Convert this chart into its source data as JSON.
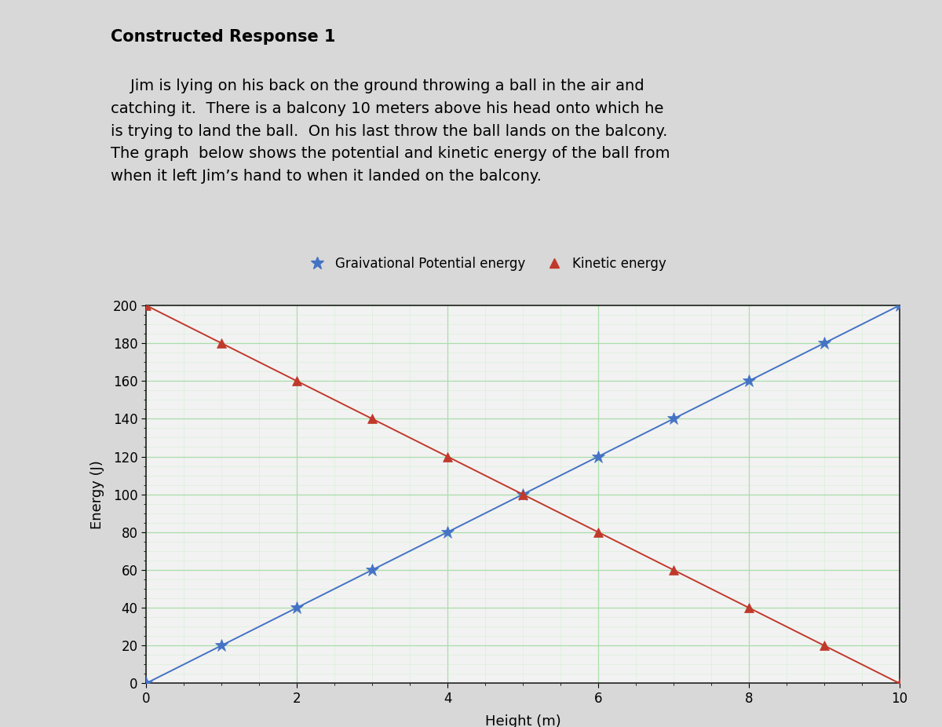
{
  "title": "Constructed Response 1",
  "body_line1": "    Jim is lying on his back on the ground throwing a ball in the air and",
  "body_line2": "catching it.  There is a balcony 10 meters above his head onto which he",
  "body_line3": "is trying to land the ball.  On his last throw the ball lands on the balcony.",
  "body_line4": "The graph  below shows the potential and kinetic energy of the ball from",
  "body_line5": "when it left Jim’s hand to when it landed on the balcony.",
  "xlabel": "Height (m)",
  "ylabel": "Energy (J)",
  "xlim": [
    0,
    10
  ],
  "ylim": [
    0,
    200
  ],
  "xticks": [
    0,
    2,
    4,
    6,
    8,
    10
  ],
  "yticks": [
    0,
    20,
    40,
    60,
    80,
    100,
    120,
    140,
    160,
    180,
    200
  ],
  "gpe_x": [
    0,
    1,
    2,
    3,
    4,
    5,
    6,
    7,
    8,
    9,
    10
  ],
  "gpe_y": [
    0,
    20,
    40,
    60,
    80,
    100,
    120,
    140,
    160,
    180,
    200
  ],
  "ke_x": [
    0,
    1,
    2,
    3,
    4,
    5,
    6,
    7,
    8,
    9,
    10
  ],
  "ke_y": [
    200,
    180,
    160,
    140,
    120,
    100,
    80,
    60,
    40,
    20,
    0
  ],
  "gpe_color": "#4472C4",
  "ke_color": "#C0392B",
  "gpe_label": "Graivational Potential energy",
  "ke_label": "Kinetic energy",
  "outer_bg": "#d8d8d8",
  "card_bg": "#f2f2f2",
  "left_bar_color": "#2255BB",
  "title_fontsize": 15,
  "body_fontsize": 14,
  "axis_label_fontsize": 13,
  "tick_fontsize": 12,
  "legend_fontsize": 12,
  "grid_major_color": "#aaddaa",
  "grid_minor_color": "#cceecc",
  "grid_major_alpha": 1.0,
  "grid_minor_alpha": 0.8
}
